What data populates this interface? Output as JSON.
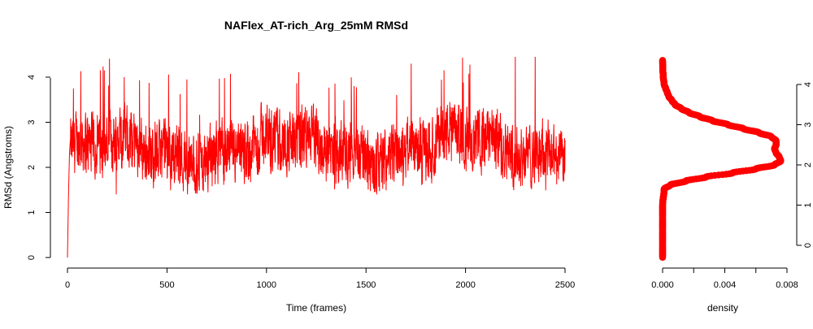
{
  "chart_data": [
    {
      "type": "line",
      "title": "NAFlex_AT-rich_Arg_25mM RMSd",
      "xlabel": "Time (frames)",
      "ylabel": "RMSd (Angstroms)",
      "xlim": [
        0,
        2500
      ],
      "ylim": [
        0,
        4
      ],
      "x_ticks": [
        "0",
        "500",
        "1000",
        "1500",
        "2000",
        "2500"
      ],
      "y_ticks": [
        "0",
        "1",
        "2",
        "3",
        "4"
      ],
      "color": "#ff0000",
      "frames": 2500,
      "grid": false,
      "series": [
        {
          "summary_points": [
            {
              "x": 0,
              "y": 0.0
            },
            {
              "x": 5,
              "y": 1.35
            },
            {
              "x": 10,
              "y": 2.3
            },
            {
              "x": 30,
              "y": 3.75
            },
            {
              "x": 100,
              "y": 2.2
            },
            {
              "x": 185,
              "y": 4.15
            },
            {
              "x": 245,
              "y": 1.4
            },
            {
              "x": 285,
              "y": 4.0
            },
            {
              "x": 600,
              "y": 3.95
            },
            {
              "x": 1000,
              "y": 2.3
            },
            {
              "x": 1500,
              "y": 2.0
            },
            {
              "x": 1900,
              "y": 2.6
            },
            {
              "x": 2250,
              "y": 4.45
            },
            {
              "x": 2350,
              "y": 4.45
            },
            {
              "x": 2400,
              "y": 2.3
            },
            {
              "x": 2500,
              "y": 2.6
            }
          ]
        }
      ]
    },
    {
      "type": "line",
      "title": "",
      "xlabel": "density",
      "ylabel": "",
      "xlim": [
        0,
        0.008
      ],
      "ylim": [
        0,
        4
      ],
      "x_ticks": [
        "0.000",
        "0.004",
        "0.008"
      ],
      "y_ticks": [
        "0",
        "1",
        "2",
        "3",
        "4"
      ],
      "y_axis_side": "right",
      "color": "#ff0000",
      "series": [
        {
          "rmsd": [
            -0.3,
            0.0,
            0.5,
            1.0,
            1.4,
            1.5,
            1.6,
            1.7,
            1.8,
            1.9,
            2.0,
            2.1,
            2.2,
            2.3,
            2.4,
            2.5,
            2.6,
            2.7,
            2.8,
            2.9,
            3.0,
            3.1,
            3.2,
            3.3,
            3.4,
            3.5,
            3.6,
            3.7,
            3.8,
            3.9,
            4.0,
            4.2,
            4.4,
            4.6
          ],
          "density": [
            0.0,
            0.0,
            0.0,
            0.0,
            0.0001,
            0.0005,
            0.0015,
            0.0028,
            0.0045,
            0.006,
            0.0072,
            0.0076,
            0.0075,
            0.0073,
            0.0072,
            0.0073,
            0.0073,
            0.007,
            0.0062,
            0.0052,
            0.0042,
            0.0032,
            0.0024,
            0.0017,
            0.0012,
            0.0008,
            0.0006,
            0.0004,
            0.0003,
            0.0002,
            0.0001,
            4e-05,
            1e-05,
            0.0
          ]
        }
      ]
    }
  ]
}
